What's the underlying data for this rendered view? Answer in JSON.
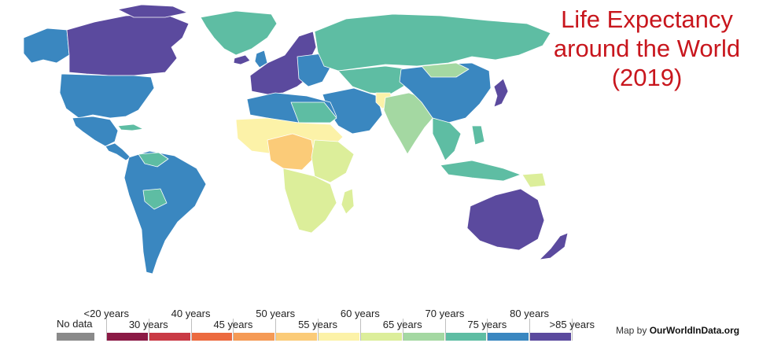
{
  "title": {
    "line1": "Life Expectancy",
    "line2": "around the World",
    "line3": "(2019)"
  },
  "legend": {
    "no_data": "No data",
    "no_data_color": "#8a8a8a",
    "bins": [
      {
        "label": "<20 years",
        "color": "#ffffff"
      },
      {
        "label": "30 years",
        "color": "#8b1a45"
      },
      {
        "label": "40 years",
        "color": "#c93a45"
      },
      {
        "label": "45 years",
        "color": "#ec6a3f"
      },
      {
        "label": "50 years",
        "color": "#f59a55"
      },
      {
        "label": "55 years",
        "color": "#fbcb78"
      },
      {
        "label": "60 years",
        "color": "#fcf2a8"
      },
      {
        "label": "65 years",
        "color": "#dcee9a"
      },
      {
        "label": "70 years",
        "color": "#a4d8a2"
      },
      {
        "label": "75 years",
        "color": "#5ebda3"
      },
      {
        "label": "80 years",
        "color": "#3a87c0"
      },
      {
        "label": ">85 years",
        "color": "#5b4a9e"
      }
    ]
  },
  "credit": {
    "prefix": "Map by ",
    "source": "OurWorldInData.org"
  },
  "regions": [
    {
      "name": "Canada",
      "bin": ">85 years",
      "color": "#5b4a9e"
    },
    {
      "name": "Greenland",
      "bin": "75 years",
      "color": "#5ebda3"
    },
    {
      "name": "United States",
      "bin": "80 years",
      "color": "#3a87c0"
    },
    {
      "name": "Mexico",
      "bin": "80 years",
      "color": "#3a87c0"
    },
    {
      "name": "South America",
      "bin": "80 years",
      "color": "#3a87c0"
    },
    {
      "name": "Europe (West)",
      "bin": ">85 years",
      "color": "#5b4a9e"
    },
    {
      "name": "Russia",
      "bin": "75 years",
      "color": "#5ebda3"
    },
    {
      "name": "North Africa",
      "bin": "80 years",
      "color": "#3a87c0"
    },
    {
      "name": "Sahel",
      "bin": "60 years",
      "color": "#fcf2a8"
    },
    {
      "name": "Central Africa",
      "bin": "55 years",
      "color": "#fbcb78"
    },
    {
      "name": "Southern Africa",
      "bin": "65 years",
      "color": "#dcee9a"
    },
    {
      "name": "Middle East",
      "bin": "80 years",
      "color": "#3a87c0"
    },
    {
      "name": "Central Asia",
      "bin": "75 years",
      "color": "#5ebda3"
    },
    {
      "name": "India",
      "bin": "70 years",
      "color": "#a4d8a2"
    },
    {
      "name": "China",
      "bin": "80 years",
      "color": "#3a87c0"
    },
    {
      "name": "Japan",
      "bin": ">85 years",
      "color": "#5b4a9e"
    },
    {
      "name": "Southeast Asia",
      "bin": "75 years",
      "color": "#5ebda3"
    },
    {
      "name": "Australia",
      "bin": ">85 years",
      "color": "#5b4a9e"
    },
    {
      "name": "New Zealand",
      "bin": ">85 years",
      "color": "#5b4a9e"
    }
  ]
}
